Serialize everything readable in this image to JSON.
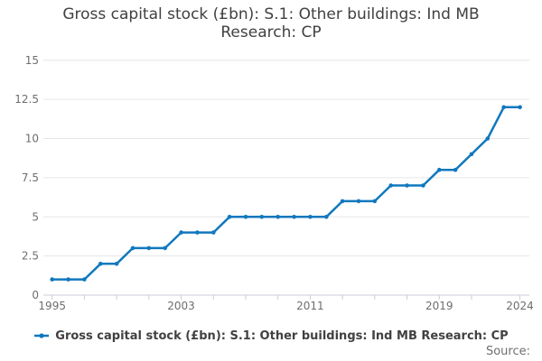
{
  "title_lines": [
    "Gross capital stock (£bn): S.1: Other buildings: Ind MB",
    "Research: CP"
  ],
  "legend": {
    "label": "Gross capital stock (£bn): S.1: Other buildings: Ind MB Research: CP",
    "marker": "line-dot-icon"
  },
  "source_label": "Source:",
  "colors": {
    "line": "#1178be",
    "grid": "#e6e6e6",
    "axis": "#c8cdd8",
    "tick_label": "#6e6e6e",
    "title": "#414042"
  },
  "chart_data": {
    "type": "line",
    "title": "Gross capital stock (£bn): S.1: Other buildings: Ind MB Research: CP",
    "xlabel": "",
    "ylabel": "",
    "x": [
      1995,
      1996,
      1997,
      1998,
      1999,
      2000,
      2001,
      2002,
      2003,
      2004,
      2005,
      2006,
      2007,
      2008,
      2009,
      2010,
      2011,
      2012,
      2013,
      2014,
      2015,
      2016,
      2017,
      2018,
      2019,
      2020,
      2021,
      2022,
      2023,
      2024
    ],
    "series": [
      {
        "name": "Gross capital stock (£bn): S.1: Other buildings: Ind MB Research: CP",
        "values": [
          1,
          1,
          1,
          2,
          2,
          3,
          3,
          3,
          4,
          4,
          4,
          5,
          5,
          5,
          5,
          5,
          5,
          5,
          6,
          6,
          6,
          7,
          7,
          7,
          8,
          8,
          9,
          10,
          12,
          12
        ]
      }
    ],
    "ylim": [
      0,
      15
    ],
    "xlim": [
      1995,
      2024
    ],
    "yticks": [
      0,
      2.5,
      5,
      7.5,
      10,
      12.5,
      15
    ],
    "xticks": [
      1995,
      1997,
      1999,
      2001,
      2003,
      2005,
      2007,
      2009,
      2011,
      2013,
      2015,
      2017,
      2019,
      2021,
      2024
    ],
    "xtick_labels": [
      "1995",
      "2003",
      "2011",
      "2019",
      "2024"
    ],
    "grid": true,
    "legend_position": "bottom"
  }
}
